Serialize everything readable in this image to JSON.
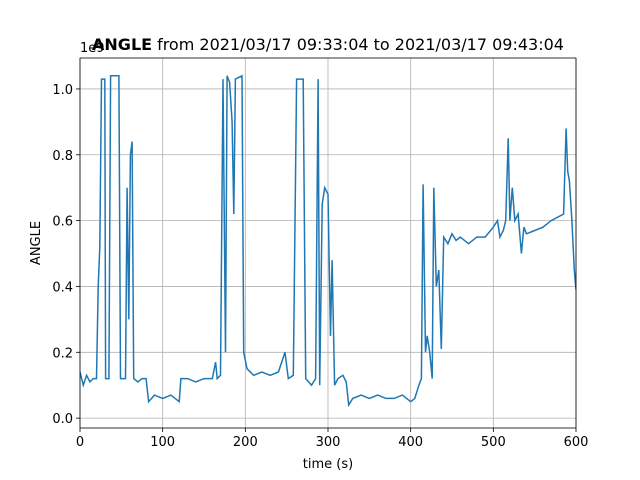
{
  "chart_data": {
    "type": "line",
    "title_bold": "ANGLE",
    "title": "from 2021/03/17 09:33:04 to 2021/03/17 09:43:04",
    "offset_text": "1e9",
    "xlabel": "time (s)",
    "ylabel": "ANGLE",
    "xlim": [
      0,
      600
    ],
    "ylim": [
      -0.03,
      1.094
    ],
    "xticks": [
      0,
      100,
      200,
      300,
      400,
      500,
      600
    ],
    "yticks": [
      {
        "value": 0,
        "label": "0.0"
      },
      0.2,
      0.4,
      0.6,
      0.8,
      {
        "value": 1,
        "label": "1.0"
      }
    ],
    "grid": true,
    "series": [
      {
        "color": "#1f77b4",
        "x": [
          0,
          4,
          8,
          12,
          16,
          20,
          22,
          24,
          26,
          30,
          31,
          35,
          37,
          47,
          49,
          55,
          57,
          59,
          61,
          63,
          65,
          70,
          75,
          80,
          83,
          90,
          100,
          110,
          120,
          122,
          130,
          140,
          150,
          160,
          164,
          166,
          170,
          173,
          176,
          178,
          181,
          184,
          186,
          188,
          196,
          198,
          202,
          210,
          220,
          230,
          240,
          248,
          252,
          258,
          262,
          270,
          273,
          280,
          285,
          288,
          290,
          293,
          296,
          300,
          303,
          305,
          308,
          312,
          318,
          322,
          325,
          330,
          340,
          350,
          360,
          370,
          380,
          390,
          400,
          405,
          410,
          413,
          415,
          418,
          420,
          423,
          426,
          428,
          431,
          434,
          437,
          440,
          445,
          450,
          455,
          460,
          470,
          480,
          490,
          500,
          505,
          508,
          512,
          515,
          518,
          520,
          523,
          526,
          530,
          534,
          537,
          540,
          550,
          560,
          570,
          585,
          588,
          590,
          592,
          595,
          598,
          600
        ],
        "values": [
          0.14,
          0.1,
          0.13,
          0.11,
          0.12,
          0.12,
          0.4,
          0.52,
          1.03,
          1.03,
          0.12,
          0.12,
          1.04,
          1.04,
          0.12,
          0.12,
          0.7,
          0.3,
          0.8,
          0.84,
          0.12,
          0.11,
          0.12,
          0.12,
          0.05,
          0.07,
          0.06,
          0.07,
          0.05,
          0.12,
          0.12,
          0.11,
          0.12,
          0.12,
          0.17,
          0.12,
          0.13,
          1.03,
          0.2,
          1.04,
          1.02,
          0.9,
          0.62,
          1.03,
          1.04,
          0.2,
          0.15,
          0.13,
          0.14,
          0.13,
          0.14,
          0.2,
          0.12,
          0.13,
          1.03,
          1.03,
          0.12,
          0.1,
          0.12,
          1.03,
          0.1,
          0.65,
          0.7,
          0.68,
          0.25,
          0.48,
          0.1,
          0.12,
          0.13,
          0.11,
          0.04,
          0.06,
          0.07,
          0.06,
          0.07,
          0.06,
          0.06,
          0.07,
          0.05,
          0.06,
          0.1,
          0.12,
          0.71,
          0.2,
          0.25,
          0.2,
          0.12,
          0.7,
          0.4,
          0.45,
          0.21,
          0.55,
          0.53,
          0.56,
          0.54,
          0.55,
          0.53,
          0.55,
          0.55,
          0.58,
          0.6,
          0.55,
          0.57,
          0.6,
          0.85,
          0.6,
          0.7,
          0.6,
          0.62,
          0.5,
          0.58,
          0.56,
          0.57,
          0.58,
          0.6,
          0.62,
          0.88,
          0.75,
          0.72,
          0.6,
          0.45,
          0.39
        ]
      }
    ]
  }
}
